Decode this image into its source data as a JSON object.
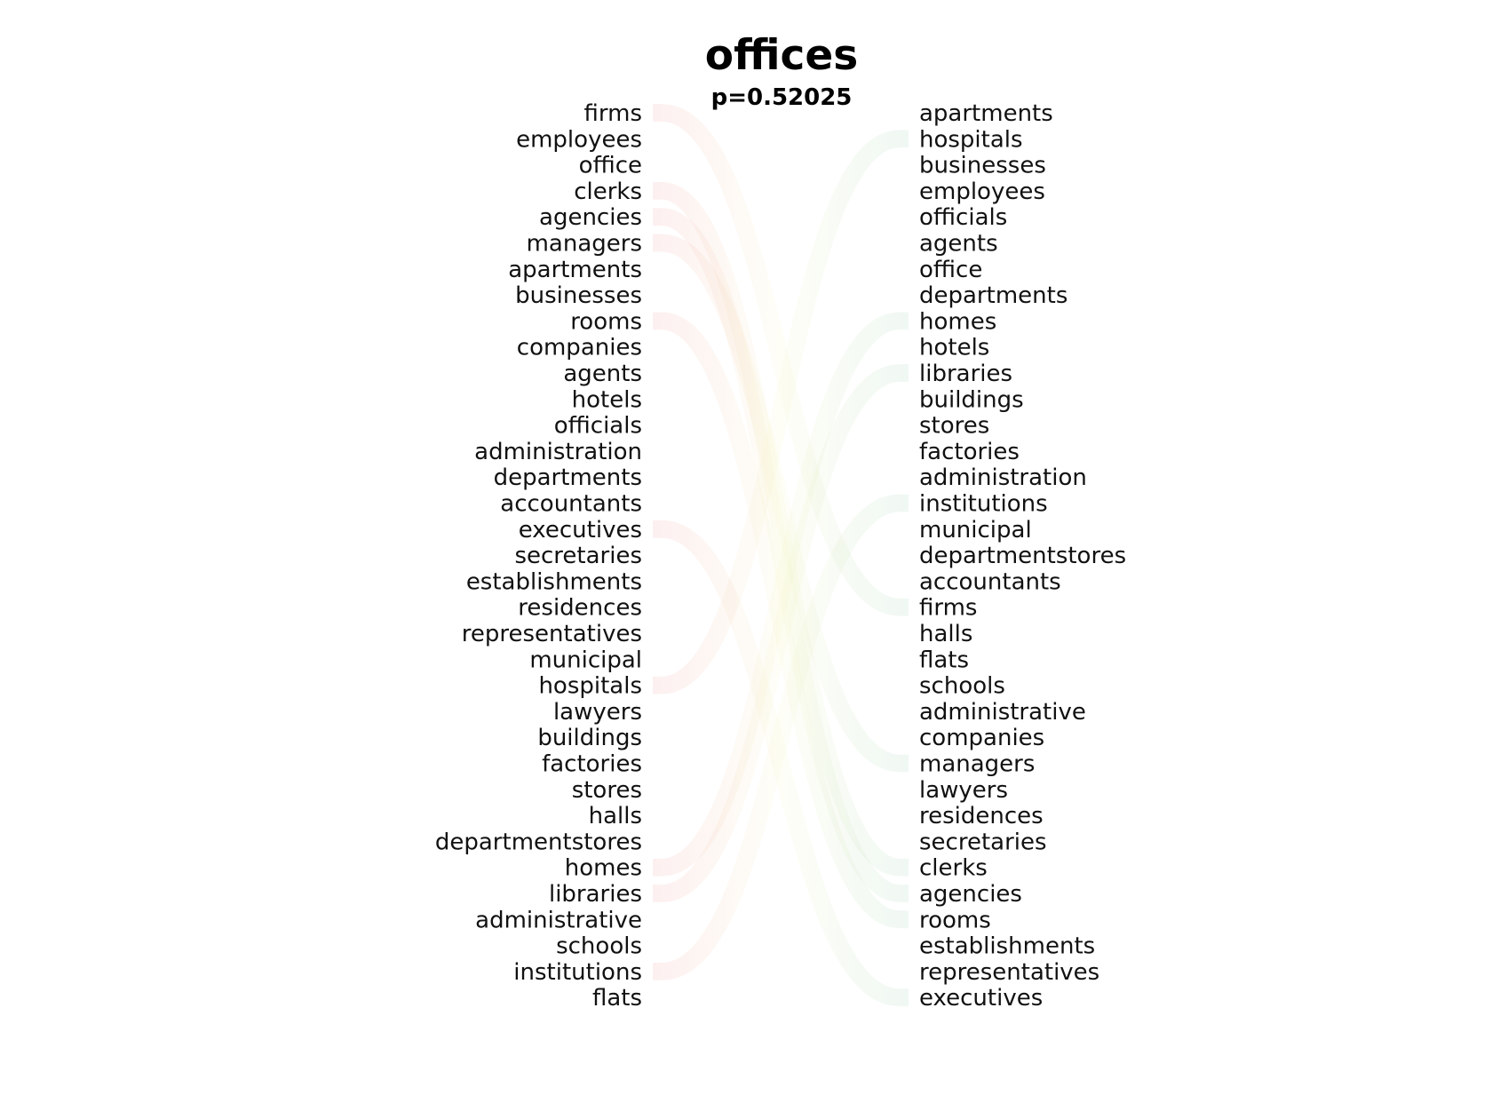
{
  "title": "offices",
  "subtitle": "p=0.52025",
  "colors": {
    "left_band": "#f08c8c",
    "right_band": "#8cc8a0",
    "mid_band": "#f2f2b0",
    "text": "#111111"
  },
  "left_words": [
    "firms",
    "employees",
    "office",
    "clerks",
    "agencies",
    "managers",
    "apartments",
    "businesses",
    "rooms",
    "companies",
    "agents",
    "hotels",
    "officials",
    "administration",
    "departments",
    "accountants",
    "executives",
    "secretaries",
    "establishments",
    "residences",
    "representatives",
    "municipal",
    "hospitals",
    "lawyers",
    "buildings",
    "factories",
    "stores",
    "halls",
    "departmentstores",
    "homes",
    "libraries",
    "administrative",
    "schools",
    "institutions",
    "flats"
  ],
  "right_words": [
    "apartments",
    "hospitals",
    "businesses",
    "employees",
    "officials",
    "agents",
    "office",
    "departments",
    "homes",
    "hotels",
    "libraries",
    "buildings",
    "stores",
    "factories",
    "administration",
    "institutions",
    "municipal",
    "departmentstores",
    "accountants",
    "firms",
    "halls",
    "flats",
    "schools",
    "administrative",
    "companies",
    "managers",
    "lawyers",
    "residences",
    "secretaries",
    "clerks",
    "agencies",
    "rooms",
    "establishments",
    "representatives",
    "executives"
  ],
  "links": [
    {
      "word": "firms",
      "weight": 0.9
    },
    {
      "word": "clerks",
      "weight": 0.9
    },
    {
      "word": "agencies",
      "weight": 0.9
    },
    {
      "word": "managers",
      "weight": 0.9
    },
    {
      "word": "rooms",
      "weight": 0.9
    },
    {
      "word": "executives",
      "weight": 0.9
    },
    {
      "word": "hospitals",
      "weight": 0.9
    },
    {
      "word": "homes",
      "weight": 0.9
    },
    {
      "word": "libraries",
      "weight": 0.9
    },
    {
      "word": "institutions",
      "weight": 0.9
    }
  ]
}
